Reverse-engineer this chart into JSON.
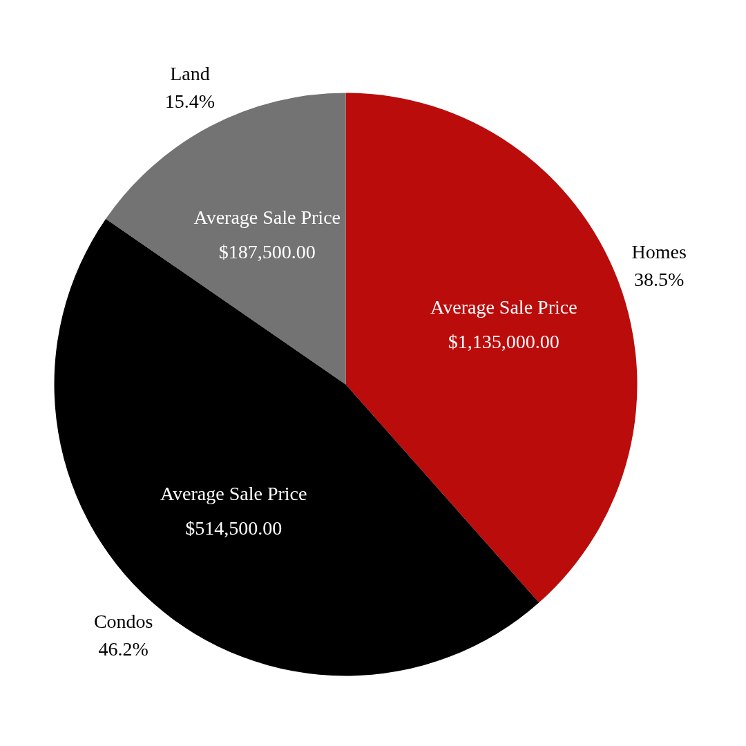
{
  "chart_data": {
    "type": "pie",
    "categories": [
      "Homes",
      "Condos",
      "Land"
    ],
    "values": [
      38.5,
      46.2,
      15.4
    ],
    "colors": [
      "#bb0c0c",
      "#000000",
      "#737373"
    ],
    "value_labels": [
      "38.5%",
      "46.2%",
      "15.4%"
    ],
    "annotations": [
      {
        "text": "Average Sale Price\n$1,135,000.00",
        "x": "Homes"
      },
      {
        "text": "Average Sale Price\n$514,500.00",
        "x": "Condos"
      },
      {
        "text": "Average Sale Price\n$187,500.00",
        "x": "Land"
      }
    ]
  }
}
